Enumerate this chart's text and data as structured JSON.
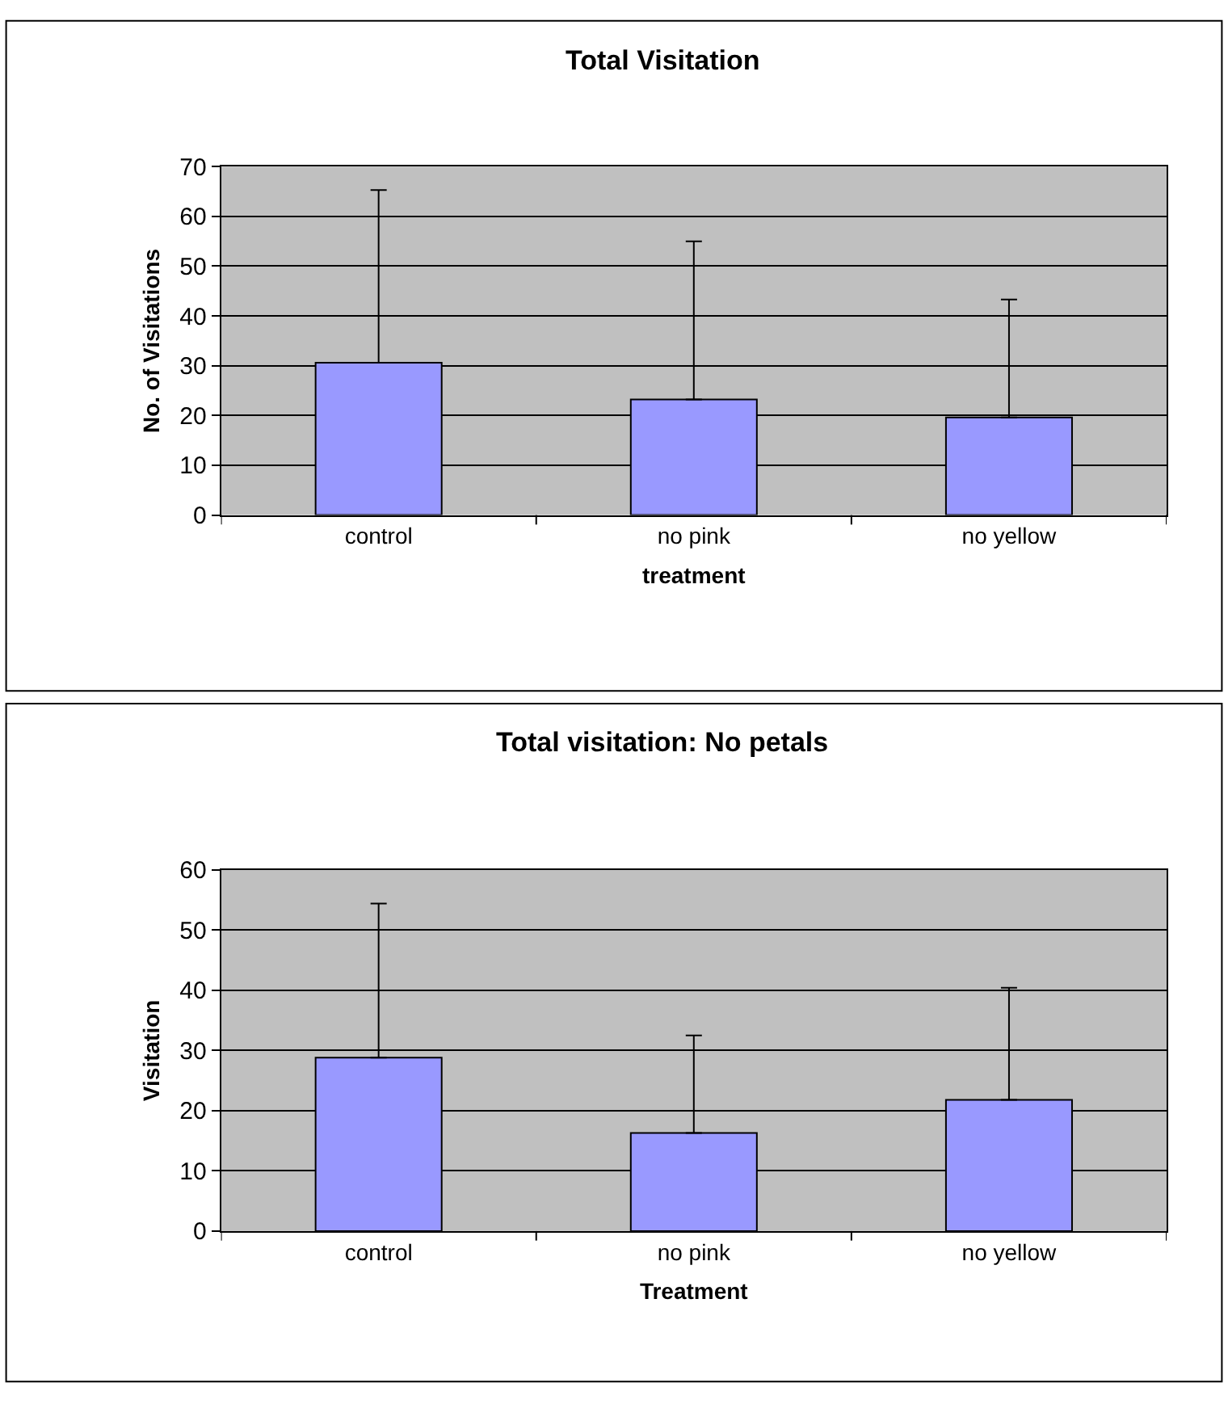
{
  "chart_data": [
    {
      "type": "bar",
      "title": "Total Visitation",
      "xlabel": "treatment",
      "ylabel": "No. of Visitations",
      "categories": [
        "control",
        "no pink",
        "no yellow"
      ],
      "values": [
        30.6,
        23.2,
        19.6
      ],
      "color": "#9999ff",
      "errors": [
        [
          30.6,
          65.3
        ],
        [
          23.2,
          55.0
        ],
        [
          19.6,
          43.3
        ]
      ],
      "ylim": [
        0,
        70
      ],
      "yticks": [
        0,
        10,
        20,
        30,
        40,
        50,
        60,
        70
      ],
      "grid": "y"
    },
    {
      "type": "bar",
      "title": "Total visitation: No petals",
      "xlabel": "Treatment",
      "ylabel": "Visitation",
      "categories": [
        "control",
        "no pink",
        "no yellow"
      ],
      "values": [
        28.8,
        16.3,
        21.8
      ],
      "color": "#9999ff",
      "errors": [
        [
          28.8,
          54.4
        ],
        [
          16.3,
          32.5
        ],
        [
          21.8,
          40.4
        ]
      ],
      "ylim": [
        0,
        60
      ],
      "yticks": [
        0,
        10,
        20,
        30,
        40,
        50,
        60
      ],
      "grid": "y"
    }
  ]
}
